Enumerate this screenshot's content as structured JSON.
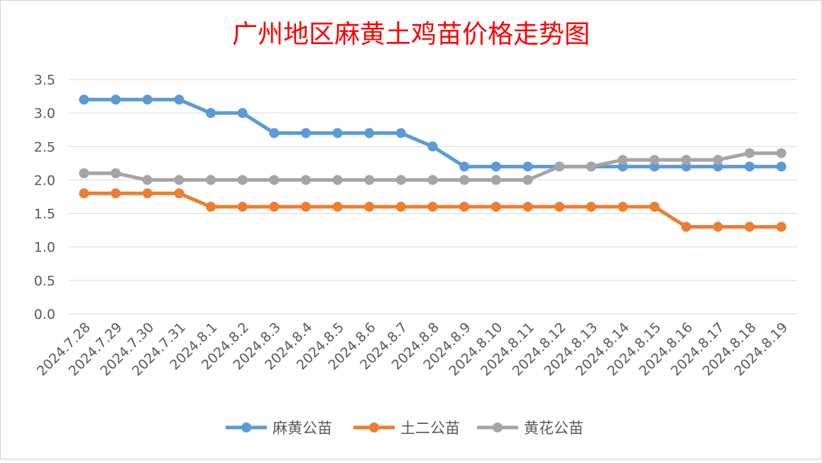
{
  "chart_data": {
    "type": "line",
    "title": "广州地区麻黄土鸡苗价格走势图",
    "xlabel": "",
    "ylabel": "",
    "ylim": [
      0,
      3.5
    ],
    "yticks": [
      "0.0",
      "0.5",
      "1.0",
      "1.5",
      "2.0",
      "2.5",
      "3.0",
      "3.5"
    ],
    "grid": true,
    "legend_position": "bottom",
    "categories": [
      "2024.7.28",
      "2024.7.29",
      "2024.7.30",
      "2024.7.31",
      "2024.8.1",
      "2024.8.2",
      "2024.8.3",
      "2024.8.4",
      "2024.8.5",
      "2024.8.6",
      "2024.8.7",
      "2024.8.8",
      "2024.8.9",
      "2024.8.10",
      "2024.8.11",
      "2024.8.12",
      "2024.8.13",
      "2024.8.14",
      "2024.8.15",
      "2024.8.16",
      "2024.8.17",
      "2024.8.18",
      "2024.8.19"
    ],
    "series": [
      {
        "name": "麻黄公苗",
        "color": "#5b9bd5",
        "values": [
          3.2,
          3.2,
          3.2,
          3.2,
          3.0,
          3.0,
          2.7,
          2.7,
          2.7,
          2.7,
          2.7,
          2.5,
          2.2,
          2.2,
          2.2,
          2.2,
          2.2,
          2.2,
          2.2,
          2.2,
          2.2,
          2.2,
          2.2
        ]
      },
      {
        "name": "土二公苗",
        "color": "#ed7d31",
        "values": [
          1.8,
          1.8,
          1.8,
          1.8,
          1.6,
          1.6,
          1.6,
          1.6,
          1.6,
          1.6,
          1.6,
          1.6,
          1.6,
          1.6,
          1.6,
          1.6,
          1.6,
          1.6,
          1.6,
          1.3,
          1.3,
          1.3,
          1.3
        ]
      },
      {
        "name": "黄花公苗",
        "color": "#a5a5a5",
        "values": [
          2.1,
          2.1,
          2.0,
          2.0,
          2.0,
          2.0,
          2.0,
          2.0,
          2.0,
          2.0,
          2.0,
          2.0,
          2.0,
          2.0,
          2.0,
          2.2,
          2.2,
          2.3,
          2.3,
          2.3,
          2.3,
          2.4,
          2.4
        ]
      }
    ]
  },
  "style": {
    "title_color": "#ff0000",
    "axis_text_color": "#595959",
    "grid_color": "#d9d9d9",
    "border_color": "#d0d0d0"
  }
}
